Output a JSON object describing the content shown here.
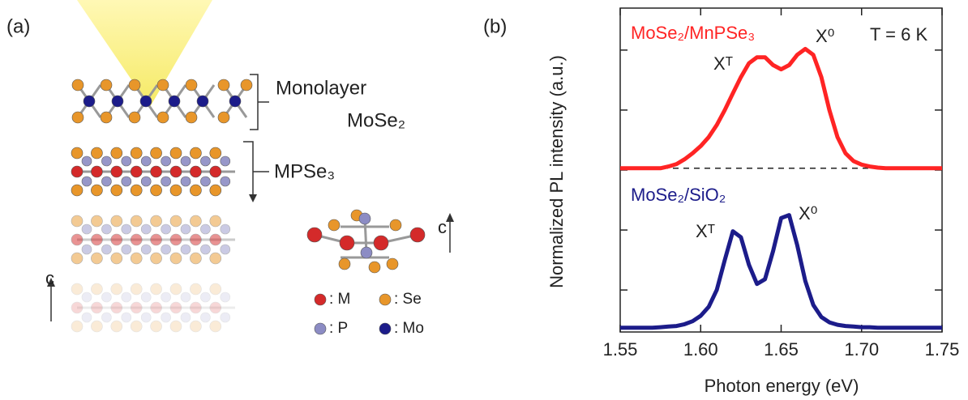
{
  "panel_labels": [
    "(a)",
    "(b)"
  ],
  "diagram": {
    "labels": [
      "Monolayer",
      "MoSe₂",
      "MPSe₃"
    ],
    "axis_labels": [
      "c",
      "c"
    ],
    "legend": [
      ": M",
      ": Se",
      ": P",
      ": Mo"
    ]
  },
  "chart_data": {
    "type": "line",
    "xlabel": "Photon energy (eV)",
    "ylabel": "Normalized PL intensity (a.u.)",
    "annotations": [
      "Xᵀ",
      "X⁰",
      "T = 6 K",
      "Xᵀ",
      "X⁰"
    ],
    "x": [
      1.55,
      1.555,
      1.56,
      1.565,
      1.57,
      1.575,
      1.58,
      1.585,
      1.59,
      1.595,
      1.6,
      1.605,
      1.61,
      1.615,
      1.62,
      1.625,
      1.63,
      1.635,
      1.64,
      1.645,
      1.65,
      1.655,
      1.66,
      1.665,
      1.67,
      1.675,
      1.68,
      1.685,
      1.69,
      1.695,
      1.7,
      1.705,
      1.71,
      1.715,
      1.72,
      1.725,
      1.73,
      1.735,
      1.74,
      1.745,
      1.75
    ],
    "series": [
      {
        "name": "MoSe₂/MnPSe₃",
        "color": "#ff2424",
        "values": [
          2.73,
          2.73,
          2.73,
          2.73,
          2.73,
          2.73,
          2.76,
          2.8,
          2.88,
          2.98,
          3.1,
          3.25,
          3.45,
          3.7,
          3.98,
          4.25,
          4.48,
          4.58,
          4.58,
          4.45,
          4.38,
          4.45,
          4.62,
          4.72,
          4.62,
          4.25,
          3.7,
          3.25,
          2.98,
          2.85,
          2.79,
          2.76,
          2.74,
          2.73,
          2.73,
          2.73,
          2.73,
          2.73,
          2.73,
          2.73,
          2.73
        ]
      },
      {
        "name": "MoSe₂/SiO₂",
        "color": "#1c1c8a",
        "values": [
          0.07,
          0.07,
          0.07,
          0.07,
          0.07,
          0.08,
          0.09,
          0.1,
          0.13,
          0.18,
          0.27,
          0.42,
          0.7,
          1.2,
          1.68,
          1.58,
          1.12,
          0.8,
          0.88,
          1.35,
          1.9,
          1.95,
          1.45,
          0.85,
          0.45,
          0.25,
          0.16,
          0.12,
          0.1,
          0.09,
          0.08,
          0.08,
          0.07,
          0.07,
          0.07,
          0.07,
          0.07,
          0.07,
          0.07,
          0.07,
          0.07
        ]
      }
    ],
    "hline": 2.73,
    "xlim": [
      1.55,
      1.75
    ],
    "xticks": [
      1.55,
      {
        "value": 1.6,
        "label": "1.60"
      },
      1.65,
      {
        "value": 1.7,
        "label": "1.70"
      },
      1.75
    ],
    "ylim": [
      0,
      5.4
    ],
    "yticks": [
      0.7,
      1.7,
      2.7,
      3.7,
      4.7
    ]
  }
}
